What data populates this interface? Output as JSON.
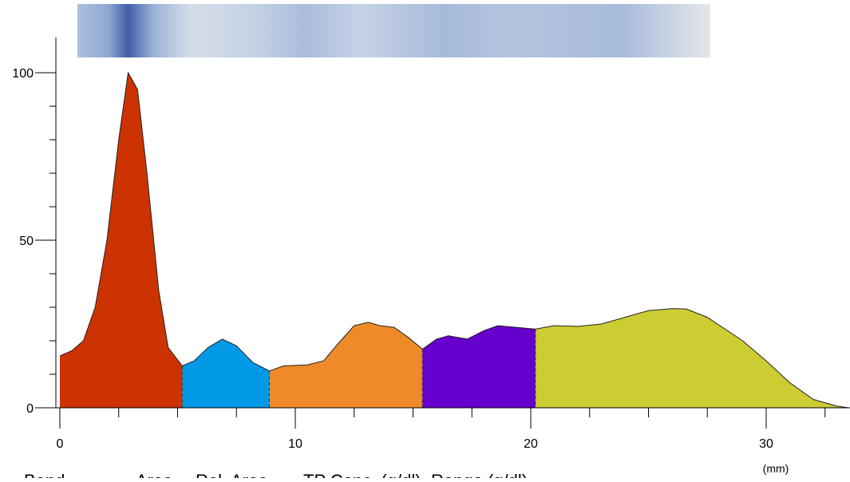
{
  "chart_data": {
    "type": "area",
    "x_label": "(mm)",
    "xlim": [
      0,
      33.56
    ],
    "ylim": [
      0,
      110.5
    ],
    "xticks": [
      0,
      10,
      20,
      30
    ],
    "xminorticks": [
      2.5,
      5,
      7.5,
      12.5,
      15,
      17.5,
      22.5,
      25,
      27.5,
      32.5
    ],
    "yticks": [
      0,
      50,
      100
    ],
    "yminorticks": [
      10,
      20,
      30,
      40,
      60,
      70,
      80,
      90
    ],
    "regions": [
      {
        "color": "#cc3300",
        "x": [
          0,
          0.5,
          1,
          1.5,
          2,
          2.5,
          2.9,
          3.3,
          3.7,
          4.2,
          4.6,
          5.2
        ],
        "values": [
          15.5,
          17,
          20,
          30,
          50,
          80,
          100,
          95,
          70,
          35,
          18,
          12.5
        ]
      },
      {
        "color": "#0099e6",
        "x": [
          5.2,
          5.7,
          6.3,
          6.9,
          7.5,
          8.2,
          8.9
        ],
        "values": [
          12.5,
          14,
          18,
          20.5,
          18.5,
          13.5,
          11
        ]
      },
      {
        "color": "#ee8a2a",
        "x": [
          8.9,
          9.5,
          10.5,
          11.2,
          11.8,
          12.5,
          13.1,
          13.6,
          14.2,
          14.8,
          15.4
        ],
        "values": [
          11,
          12.5,
          12.8,
          14,
          19,
          24.5,
          25.5,
          24.5,
          24,
          21,
          17.5
        ]
      },
      {
        "color": "#6600cc",
        "x": [
          15.4,
          16,
          16.5,
          17.3,
          18,
          18.6,
          19.4,
          20.2
        ],
        "values": [
          17.5,
          20.5,
          21.5,
          20.5,
          23,
          24.5,
          24,
          23.5
        ]
      },
      {
        "color": "#cccc33",
        "x": [
          20.2,
          21,
          22,
          23,
          24,
          25,
          26,
          26.6,
          27.5,
          29,
          30,
          31,
          32,
          33,
          33.5
        ],
        "values": [
          23.5,
          24.5,
          24.3,
          25,
          27,
          29,
          29.6,
          29.5,
          27,
          20,
          14,
          7.5,
          2.5,
          0.5,
          0
        ]
      }
    ],
    "table_columns": [
      "Band",
      "Area",
      "Rel. Area",
      "TP Conc. (g/dl)",
      "Range (g/dl)"
    ]
  }
}
